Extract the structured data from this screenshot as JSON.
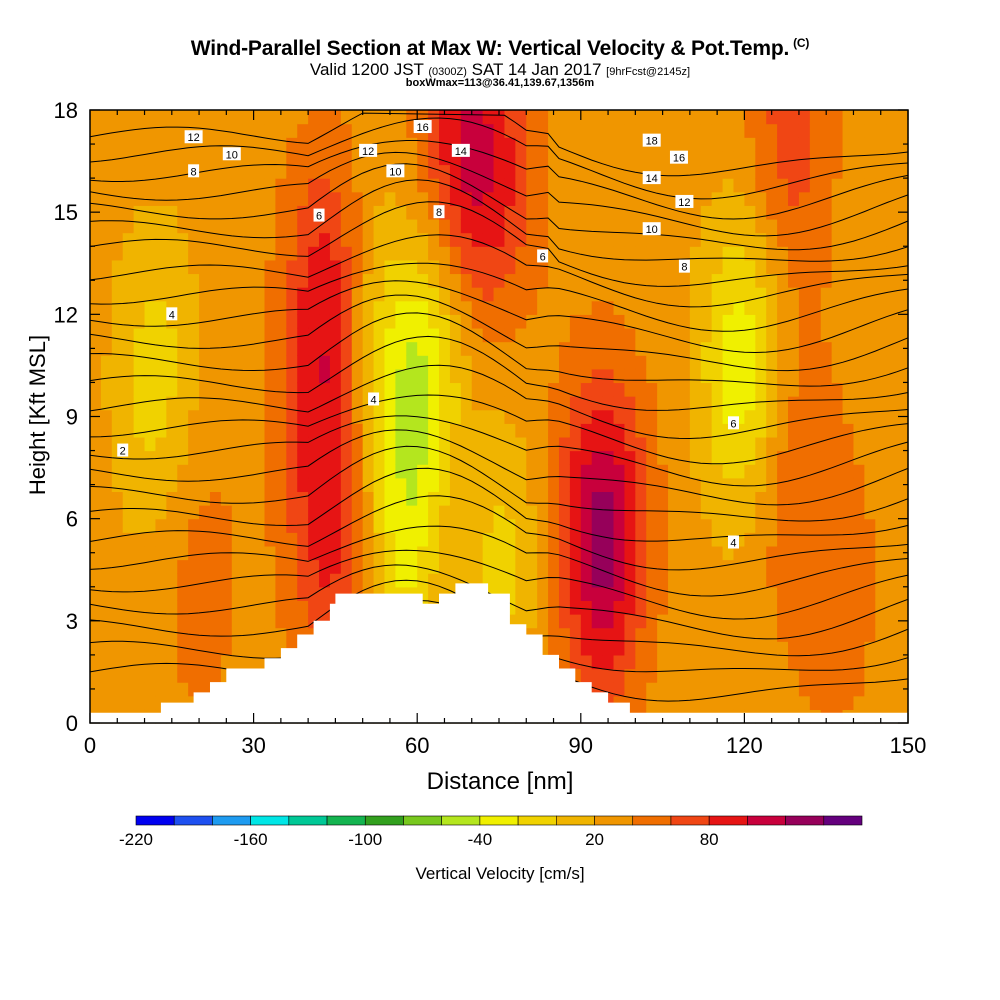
{
  "header": {
    "title": "Wind-Parallel Section at Max W: Vertical Velocity & Pot.Temp.",
    "copyright": "(C)",
    "valid_prefix": "Valid 1200 JST",
    "valid_utc": "(0300Z)",
    "valid_date": "SAT 14 Jan 2017",
    "forecast": "[9hrFcst@2145z]",
    "box_info": "boxWmax=113@36.41,139.67,1356m"
  },
  "colorbar": {
    "label": "Vertical Velocity [cm/s]",
    "colors": [
      "#0000f0",
      "#1e50f0",
      "#1e9bf0",
      "#00e6e6",
      "#00c896",
      "#14b450",
      "#32a01e",
      "#78c81e",
      "#b4e61e",
      "#f0f000",
      "#f0d200",
      "#f0b400",
      "#f09600",
      "#f06e00",
      "#f04614",
      "#e61414",
      "#c8003c",
      "#96005a",
      "#64007d"
    ],
    "tick_labels": [
      "-220",
      "-160",
      "-100",
      "-40",
      "20",
      "80"
    ],
    "tick_values": [
      -220,
      -160,
      -100,
      -40,
      20,
      80
    ],
    "min": -220,
    "step": 20
  },
  "chart_data": {
    "type": "heatmap",
    "title": "Wind-Parallel Section at Max W: Vertical Velocity & Pot.Temp.",
    "xlabel": "Distance [nm]",
    "ylabel": "Height [Kft MSL]",
    "xlim": [
      0,
      150
    ],
    "ylim": [
      0,
      18
    ],
    "x_ticks": [
      0,
      30,
      60,
      90,
      120,
      150
    ],
    "y_ticks": [
      0,
      3,
      6,
      9,
      12,
      15,
      18
    ],
    "z_label": "Vertical Velocity [cm/s]",
    "terrain": [
      [
        0,
        0.3
      ],
      [
        13,
        0.3
      ],
      [
        13,
        0.6
      ],
      [
        19,
        0.6
      ],
      [
        19,
        0.9
      ],
      [
        22,
        0.9
      ],
      [
        22,
        1.2
      ],
      [
        25,
        1.2
      ],
      [
        25,
        1.6
      ],
      [
        32,
        1.6
      ],
      [
        32,
        1.9
      ],
      [
        35,
        1.9
      ],
      [
        35,
        2.2
      ],
      [
        38,
        2.2
      ],
      [
        38,
        2.6
      ],
      [
        41,
        2.6
      ],
      [
        41,
        3.0
      ],
      [
        44,
        3.0
      ],
      [
        44,
        3.5
      ],
      [
        45,
        3.5
      ],
      [
        45,
        3.8
      ],
      [
        61,
        3.8
      ],
      [
        61,
        3.5
      ],
      [
        64,
        3.5
      ],
      [
        64,
        3.8
      ],
      [
        67,
        3.8
      ],
      [
        67,
        4.1
      ],
      [
        73,
        4.1
      ],
      [
        73,
        3.8
      ],
      [
        77,
        3.8
      ],
      [
        77,
        2.9
      ],
      [
        80,
        2.9
      ],
      [
        80,
        2.6
      ],
      [
        83,
        2.6
      ],
      [
        83,
        2.0
      ],
      [
        86,
        2.0
      ],
      [
        86,
        1.6
      ],
      [
        89,
        1.6
      ],
      [
        89,
        1.2
      ],
      [
        92,
        1.2
      ],
      [
        92,
        0.9
      ],
      [
        95,
        0.9
      ],
      [
        95,
        0.6
      ],
      [
        99,
        0.6
      ],
      [
        99,
        0.3
      ],
      [
        150,
        0.3
      ]
    ],
    "velocity_features": [
      {
        "x": 44,
        "y": 12,
        "w": 80
      },
      {
        "x": 44,
        "y": 6,
        "w": 60
      },
      {
        "x": 94,
        "y": 5.5,
        "w": 100
      },
      {
        "x": 68,
        "y": 17,
        "w": 60
      },
      {
        "x": 68,
        "y": 6,
        "w": 50
      },
      {
        "x": 75,
        "y": 16,
        "w": 40
      },
      {
        "x": 20,
        "y": 4.5,
        "w": 20
      },
      {
        "x": 50,
        "y": 11,
        "w": -50
      },
      {
        "x": 62,
        "y": 10,
        "w": -70
      },
      {
        "x": 58,
        "y": 5,
        "w": -50
      },
      {
        "x": 73,
        "y": 5,
        "w": -60
      },
      {
        "x": 120,
        "y": 10.5,
        "w": -70
      },
      {
        "x": 12,
        "y": 10,
        "w": -40
      },
      {
        "x": 128,
        "y": 7.5,
        "w": 30
      },
      {
        "x": 128,
        "y": 17,
        "w": 40
      },
      {
        "x": 137,
        "y": 4,
        "w": 20
      }
    ],
    "contour_labels": [
      {
        "text": "12",
        "x": 19,
        "y": 17.2
      },
      {
        "text": "10",
        "x": 26,
        "y": 16.7
      },
      {
        "text": "8",
        "x": 19,
        "y": 16.2
      },
      {
        "text": "6",
        "x": 42,
        "y": 14.9
      },
      {
        "text": "4",
        "x": 15,
        "y": 12.0
      },
      {
        "text": "2",
        "x": 6,
        "y": 8.0
      },
      {
        "text": "16",
        "x": 61,
        "y": 17.5
      },
      {
        "text": "12",
        "x": 51,
        "y": 16.8
      },
      {
        "text": "10",
        "x": 56,
        "y": 16.2
      },
      {
        "text": "14",
        "x": 68,
        "y": 16.8
      },
      {
        "text": "8",
        "x": 64,
        "y": 15.0
      },
      {
        "text": "4",
        "x": 52,
        "y": 9.5
      },
      {
        "text": "18",
        "x": 103,
        "y": 17.1
      },
      {
        "text": "16",
        "x": 108,
        "y": 16.6
      },
      {
        "text": "14",
        "x": 103,
        "y": 16.0
      },
      {
        "text": "12",
        "x": 109,
        "y": 15.3
      },
      {
        "text": "10",
        "x": 103,
        "y": 14.5
      },
      {
        "text": "8",
        "x": 109,
        "y": 13.4
      },
      {
        "text": "6",
        "x": 83,
        "y": 13.7
      },
      {
        "text": "6",
        "x": 118,
        "y": 8.8
      },
      {
        "text": "4",
        "x": 118,
        "y": 5.3
      }
    ]
  }
}
